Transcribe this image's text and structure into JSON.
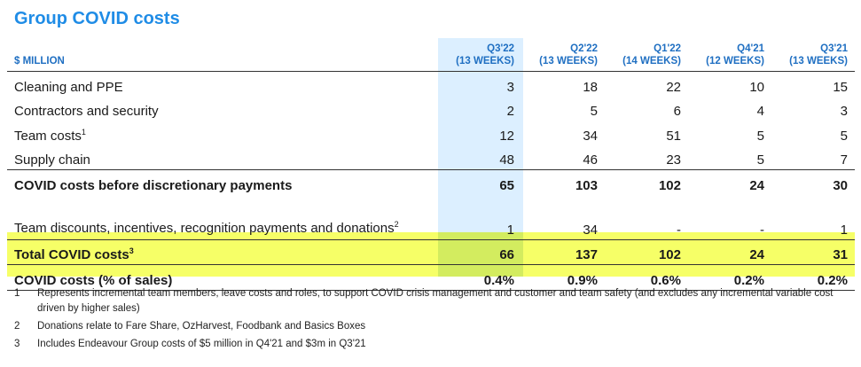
{
  "title": "Group COVID costs",
  "header": {
    "unit_label": "$ MILLION",
    "columns": [
      {
        "period": "Q3'22",
        "weeks": "(13 WEEKS)"
      },
      {
        "period": "Q2'22",
        "weeks": "(13 WEEKS)"
      },
      {
        "period": "Q1'22",
        "weeks": "(14 WEEKS)"
      },
      {
        "period": "Q4'21",
        "weeks": "(12 WEEKS)"
      },
      {
        "period": "Q3'21",
        "weeks": "(13 WEEKS)"
      }
    ]
  },
  "rows": [
    {
      "label": "Cleaning and PPE",
      "sup": "",
      "values": [
        "3",
        "18",
        "22",
        "10",
        "15"
      ]
    },
    {
      "label": "Contractors and security",
      "sup": "",
      "values": [
        "2",
        "5",
        "6",
        "4",
        "3"
      ]
    },
    {
      "label": "Team costs",
      "sup": "1",
      "values": [
        "12",
        "34",
        "51",
        "5",
        "5"
      ]
    },
    {
      "label": "Supply chain",
      "sup": "",
      "values": [
        "48",
        "46",
        "23",
        "5",
        "7"
      ]
    },
    {
      "label": "COVID costs before discretionary payments",
      "sup": "",
      "values": [
        "65",
        "103",
        "102",
        "24",
        "30"
      ]
    },
    {
      "label": "Team discounts, incentives, recognition payments and donations",
      "sup": "2",
      "values": [
        "1",
        "34",
        "-",
        "-",
        "1"
      ]
    },
    {
      "label": "Total COVID costs",
      "sup": "3",
      "values": [
        "66",
        "137",
        "102",
        "24",
        "31"
      ]
    },
    {
      "label": "COVID costs (% of sales)",
      "sup": "",
      "values": [
        "0.4%",
        "0.9%",
        "0.6%",
        "0.2%",
        "0.2%"
      ]
    }
  ],
  "footnotes": [
    {
      "num": "1",
      "text": "Represents incremental team members, leave costs and roles, to support COVID crisis management and customer and team safety (and excludes any incremental variable cost driven by higher sales)"
    },
    {
      "num": "2",
      "text": "Donations relate to Fare Share, OzHarvest, Foodbank and Basics Boxes"
    },
    {
      "num": "3",
      "text": "Includes Endeavour Group costs of $5 million in Q4'21 and $3m in Q3'21"
    }
  ],
  "colors": {
    "title": "#1f8ce6",
    "header": "#1f6fc2",
    "current_quarter_highlight": "#dcefff",
    "total_rows_highlight": "#f6ff67"
  }
}
